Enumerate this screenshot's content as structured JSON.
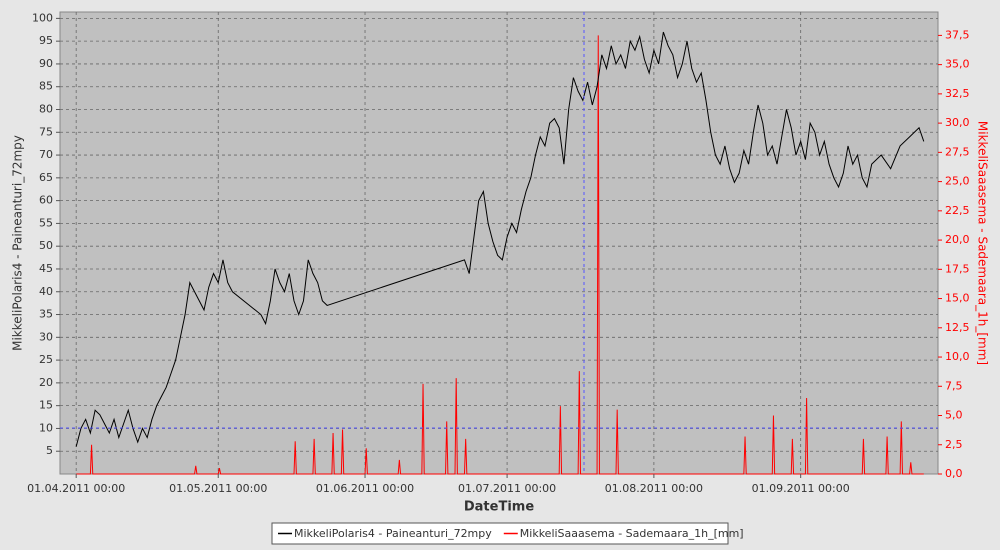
{
  "chart_data": {
    "type": "line",
    "xlabel": "DateTime",
    "ylabel": "MikkeliPolaris4 - Paineanturi_72mpy",
    "y2label": "MikkeliSaaasema - Sademaara_1h_[mm]",
    "grid": true,
    "legend": "bottom",
    "xlim": [
      "2011-03-28T14:00",
      "2011-09-30T00:00"
    ],
    "xticks": [
      {
        "value": "2011-04-01T00:00",
        "label": "01.04.2011 00:00"
      },
      {
        "value": "2011-05-01T00:00",
        "label": "01.05.2011 00:00"
      },
      {
        "value": "2011-06-01T00:00",
        "label": "01.06.2011 00:00"
      },
      {
        "value": "2011-07-01T00:00",
        "label": "01.07.2011 00:00"
      },
      {
        "value": "2011-08-01T00:00",
        "label": "01.08.2011 00:00"
      },
      {
        "value": "2011-09-01T00:00",
        "label": "01.09.2011 00:00"
      }
    ],
    "ylim": [
      0,
      101.4
    ],
    "yticks": [
      5,
      10,
      15,
      20,
      25,
      30,
      35,
      40,
      45,
      50,
      55,
      60,
      65,
      70,
      75,
      80,
      85,
      90,
      95,
      100
    ],
    "y2lim": [
      0,
      39.5
    ],
    "y2ticks": [
      {
        "value": 0,
        "label": "0,0"
      },
      {
        "value": 2.5,
        "label": "2,5"
      },
      {
        "value": 5,
        "label": "5,0"
      },
      {
        "value": 7.5,
        "label": "7,5"
      },
      {
        "value": 10,
        "label": "10,0"
      },
      {
        "value": 12.5,
        "label": "12,5"
      },
      {
        "value": 15,
        "label": "15,0"
      },
      {
        "value": 17.5,
        "label": "17,5"
      },
      {
        "value": 20,
        "label": "20,0"
      },
      {
        "value": 22.5,
        "label": "22,5"
      },
      {
        "value": 25,
        "label": "25,0"
      },
      {
        "value": 27.5,
        "label": "27,5"
      },
      {
        "value": 30,
        "label": "30,0"
      },
      {
        "value": 32.5,
        "label": "32,5"
      },
      {
        "value": 35,
        "label": "35,0"
      },
      {
        "value": 37.5,
        "label": "37,5"
      }
    ],
    "x": [
      "2011-04-01",
      "2011-04-02",
      "2011-04-03",
      "2011-04-04",
      "2011-04-05",
      "2011-04-06",
      "2011-04-07",
      "2011-04-08",
      "2011-04-09",
      "2011-04-10",
      "2011-04-11",
      "2011-04-12",
      "2011-04-13",
      "2011-04-14",
      "2011-04-15",
      "2011-04-16",
      "2011-04-17",
      "2011-04-18",
      "2011-04-19",
      "2011-04-20",
      "2011-04-21",
      "2011-04-22",
      "2011-04-23",
      "2011-04-24",
      "2011-04-25",
      "2011-04-26",
      "2011-04-27",
      "2011-04-28",
      "2011-04-29",
      "2011-04-30",
      "2011-05-01",
      "2011-05-02",
      "2011-05-03",
      "2011-05-04",
      "2011-05-10",
      "2011-05-11",
      "2011-05-12",
      "2011-05-13",
      "2011-05-14",
      "2011-05-15",
      "2011-05-16",
      "2011-05-17",
      "2011-05-18",
      "2011-05-19",
      "2011-05-20",
      "2011-05-21",
      "2011-05-22",
      "2011-05-23",
      "2011-05-24",
      "2011-06-22",
      "2011-06-23",
      "2011-06-24",
      "2011-06-25",
      "2011-06-26",
      "2011-06-27",
      "2011-06-28",
      "2011-06-29",
      "2011-06-30",
      "2011-07-01",
      "2011-07-02",
      "2011-07-03",
      "2011-07-04",
      "2011-07-05",
      "2011-07-06",
      "2011-07-07",
      "2011-07-08",
      "2011-07-09",
      "2011-07-10",
      "2011-07-11",
      "2011-07-12",
      "2011-07-13",
      "2011-07-14",
      "2011-07-15",
      "2011-07-16",
      "2011-07-17",
      "2011-07-18",
      "2011-07-19",
      "2011-07-20",
      "2011-07-21",
      "2011-07-22",
      "2011-07-23",
      "2011-07-24",
      "2011-07-25",
      "2011-07-26",
      "2011-07-27",
      "2011-07-28",
      "2011-07-29",
      "2011-07-30",
      "2011-07-31",
      "2011-08-01",
      "2011-08-02",
      "2011-08-03",
      "2011-08-04",
      "2011-08-05",
      "2011-08-06",
      "2011-08-07",
      "2011-08-08",
      "2011-08-09",
      "2011-08-10",
      "2011-08-11",
      "2011-08-12",
      "2011-08-13",
      "2011-08-14",
      "2011-08-15",
      "2011-08-16",
      "2011-08-17",
      "2011-08-18",
      "2011-08-19",
      "2011-08-20",
      "2011-08-21",
      "2011-08-22",
      "2011-08-23",
      "2011-08-24",
      "2011-08-25",
      "2011-08-26",
      "2011-08-27",
      "2011-08-28",
      "2011-08-29",
      "2011-08-30",
      "2011-08-31",
      "2011-09-01",
      "2011-09-02",
      "2011-09-03",
      "2011-09-04",
      "2011-09-05",
      "2011-09-06",
      "2011-09-07",
      "2011-09-08",
      "2011-09-09",
      "2011-09-10",
      "2011-09-11",
      "2011-09-12",
      "2011-09-13",
      "2011-09-14",
      "2011-09-15",
      "2011-09-16",
      "2011-09-18",
      "2011-09-20",
      "2011-09-22",
      "2011-09-24",
      "2011-09-26",
      "2011-09-27"
    ],
    "series": [
      {
        "name": "MikkeliPolaris4 - Paineanturi_72mpy",
        "color": "#000000",
        "values": [
          6,
          10,
          12,
          9,
          14,
          13,
          11,
          9,
          12,
          8,
          11,
          14,
          10,
          7,
          10,
          8,
          12,
          15,
          17,
          19,
          22,
          25,
          30,
          35,
          42,
          40,
          38,
          36,
          41,
          44,
          42,
          47,
          42,
          40,
          35,
          33,
          38,
          45,
          42,
          40,
          44,
          38,
          35,
          38,
          47,
          44,
          42,
          38,
          37,
          47,
          44,
          52,
          60,
          62,
          55,
          51,
          48,
          47,
          52,
          55,
          53,
          58,
          62,
          65,
          70,
          74,
          72,
          77,
          78,
          76,
          68,
          80,
          87,
          84,
          82,
          86,
          81,
          85,
          92,
          89,
          94,
          90,
          92,
          89,
          95,
          93,
          96,
          91,
          88,
          93,
          90,
          97,
          94,
          92,
          87,
          90,
          95,
          89,
          86,
          88,
          82,
          75,
          70,
          68,
          72,
          67,
          64,
          66,
          71,
          68,
          75,
          81,
          77,
          70,
          72,
          68,
          74,
          80,
          76,
          70,
          73,
          69,
          77,
          75,
          70,
          73,
          68,
          65,
          63,
          66,
          72,
          68,
          70,
          65,
          63,
          68,
          70,
          67,
          72,
          74,
          76,
          73
        ]
      },
      {
        "name": "MikkeliSaaasema - Sademaara_1h_[mm]",
        "color": "#ff0000",
        "axis": "y2",
        "x": [
          "2011-04-01T00:00",
          "2011-04-04T00:00",
          "2011-04-04T06:00",
          "2011-04-04T12:00",
          "2011-04-26T00:00",
          "2011-04-26T06:00",
          "2011-04-26T12:00",
          "2011-05-01T00:00",
          "2011-05-01T06:00",
          "2011-05-01T12:00",
          "2011-05-17T00:00",
          "2011-05-17T06:00",
          "2011-05-17T12:00",
          "2011-05-21T00:00",
          "2011-05-21T06:00",
          "2011-05-21T12:00",
          "2011-05-25T00:00",
          "2011-05-25T06:00",
          "2011-05-25T12:00",
          "2011-05-27T00:00",
          "2011-05-27T06:00",
          "2011-05-27T12:00",
          "2011-06-01T00:00",
          "2011-06-01T06:00",
          "2011-06-01T12:00",
          "2011-06-08T00:00",
          "2011-06-08T06:00",
          "2011-06-08T12:00",
          "2011-06-13T00:00",
          "2011-06-13T06:00",
          "2011-06-13T12:00",
          "2011-06-18T00:00",
          "2011-06-18T06:00",
          "2011-06-18T12:00",
          "2011-06-20T00:00",
          "2011-06-20T06:00",
          "2011-06-20T12:00",
          "2011-06-22T00:00",
          "2011-06-22T06:00",
          "2011-06-22T12:00",
          "2011-07-12T00:00",
          "2011-07-12T06:00",
          "2011-07-12T12:00",
          "2011-07-16T00:00",
          "2011-07-16T06:00",
          "2011-07-16T12:00",
          "2011-07-20T00:00",
          "2011-07-20T06:00",
          "2011-07-20T12:00",
          "2011-07-24T00:00",
          "2011-07-24T06:00",
          "2011-07-24T12:00",
          "2011-08-20T00:00",
          "2011-08-20T06:00",
          "2011-08-20T12:00",
          "2011-08-26T00:00",
          "2011-08-26T06:00",
          "2011-08-26T12:00",
          "2011-08-30T00:00",
          "2011-08-30T06:00",
          "2011-08-30T12:00",
          "2011-09-02T00:00",
          "2011-09-02T06:00",
          "2011-09-02T12:00",
          "2011-09-14T00:00",
          "2011-09-14T06:00",
          "2011-09-14T12:00",
          "2011-09-19T00:00",
          "2011-09-19T06:00",
          "2011-09-19T12:00",
          "2011-09-22T00:00",
          "2011-09-22T06:00",
          "2011-09-22T12:00",
          "2011-09-24T00:00",
          "2011-09-24T06:00",
          "2011-09-24T12:00",
          "2011-09-27T00:00"
        ],
        "values": [
          0,
          0,
          2.5,
          0,
          0,
          0.7,
          0,
          0,
          0.5,
          0,
          0,
          2.8,
          0,
          0,
          3,
          0,
          0,
          3.5,
          0,
          0,
          3.8,
          0,
          0,
          2.2,
          0,
          0,
          1.2,
          0,
          0,
          7.7,
          0,
          0,
          4.5,
          0,
          0,
          8.2,
          0,
          0,
          3,
          0,
          0,
          5.8,
          0,
          0,
          8.8,
          0,
          0,
          37.5,
          0,
          0,
          5.5,
          0,
          0,
          3.2,
          0,
          0,
          5,
          0,
          0,
          3,
          0,
          0,
          6.5,
          0,
          0,
          3,
          0,
          0,
          3.2,
          0,
          0,
          4.5,
          0,
          0,
          1,
          0,
          0
        ]
      }
    ]
  }
}
